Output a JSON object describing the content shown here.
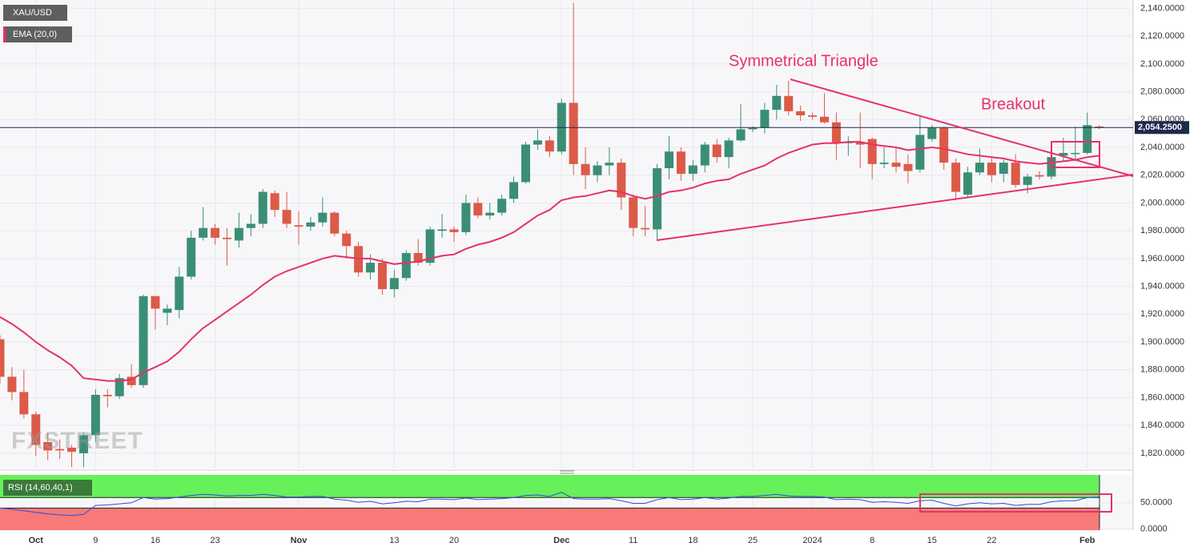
{
  "chart_data": {
    "type": "candlestick",
    "symbol": "XAU/USD",
    "indicator_label": "EMA (20,0)",
    "annotations": [
      "Symmetrical Triangle",
      "Breakout"
    ],
    "watermark": "FXSTREET",
    "colors": {
      "up": "#3b8e76",
      "down": "#dc5a48",
      "ema": "#e8306a",
      "rsi": "#2b4ed6"
    },
    "ylim": [
      1809,
      2146
    ],
    "yticks": [
      {
        "value": 1820,
        "label": "1,820.0000"
      },
      {
        "value": 1840,
        "label": "1,840.0000"
      },
      {
        "value": 1860,
        "label": "1,860.0000"
      },
      {
        "value": 1880,
        "label": "1,880.0000"
      },
      {
        "value": 1900,
        "label": "1,900.0000"
      },
      {
        "value": 1920,
        "label": "1,920.0000"
      },
      {
        "value": 1940,
        "label": "1,940.0000"
      },
      {
        "value": 1960,
        "label": "1,960.0000"
      },
      {
        "value": 1980,
        "label": "1,980.0000"
      },
      {
        "value": 2000,
        "label": "2,000.0000"
      },
      {
        "value": 2020,
        "label": "2,020.0000"
      },
      {
        "value": 2040,
        "label": "2,040.0000"
      },
      {
        "value": 2060,
        "label": "2,060.0000"
      },
      {
        "value": 2080,
        "label": "2,080.0000"
      },
      {
        "value": 2100,
        "label": "2,100.0000"
      },
      {
        "value": 2120,
        "label": "2,120.0000"
      },
      {
        "value": 2140,
        "label": "2,140.0000"
      }
    ],
    "xticks": [
      {
        "value": 3,
        "label": "Oct"
      },
      {
        "value": 8,
        "label": "9"
      },
      {
        "value": 13,
        "label": "16"
      },
      {
        "value": 18,
        "label": "23"
      },
      {
        "value": 25,
        "label": "Nov"
      },
      {
        "value": 33,
        "label": "13"
      },
      {
        "value": 38,
        "label": "20"
      },
      {
        "value": 47,
        "label": "Dec"
      },
      {
        "value": 53,
        "label": "11"
      },
      {
        "value": 58,
        "label": "18"
      },
      {
        "value": 63,
        "label": "25"
      },
      {
        "value": 68,
        "label": "2024"
      },
      {
        "value": 73,
        "label": "8"
      },
      {
        "value": 78,
        "label": "15"
      },
      {
        "value": 83,
        "label": "22"
      },
      {
        "value": 91,
        "label": "Feb"
      }
    ],
    "last_price": {
      "value": 2054.25,
      "label": "2,054.2500"
    },
    "open": [
      1902,
      1875,
      1864,
      1848,
      1828,
      1823,
      1824,
      1820,
      1833,
      1862,
      1861,
      1875,
      1869,
      1933,
      1921,
      1923,
      1947,
      1975,
      1982,
      1975,
      1973,
      1982,
      1985,
      2007,
      1995,
      1984,
      1983,
      1986,
      1993,
      1978,
      1969,
      1950,
      1957,
      1938,
      1946,
      1964,
      1957,
      1980,
      1981,
      1979,
      2000,
      1991,
      1993,
      2003,
      2015,
      2042,
      2045,
      2037,
      2072,
      2028,
      2020,
      2027,
      2029,
      2004,
      1982,
      1981,
      2025,
      2037,
      2021,
      2027,
      2042,
      2033,
      2045,
      2053,
      2054,
      2067,
      2077,
      2066,
      2063,
      2062,
      2058,
      2043,
      2044,
      2046,
      2028,
      2029,
      2028,
      2024,
      2046,
      2054,
      2029,
      2006,
      2022,
      2029,
      2021,
      2029,
      2013,
      2020,
      2019,
      2034,
      2036,
      2036,
      2055
    ],
    "high": [
      1905,
      1882,
      1880,
      1850,
      1835,
      1830,
      1826,
      1835,
      1866,
      1866,
      1877,
      1884,
      1934,
      1933,
      1927,
      1954,
      1980,
      1997,
      1985,
      1982,
      1993,
      1992,
      2010,
      2009,
      2008,
      1994,
      1990,
      2004,
      1994,
      1980,
      1972,
      1963,
      1960,
      1952,
      1966,
      1974,
      1983,
      1992,
      1983,
      2006,
      2004,
      2000,
      2006,
      2019,
      2044,
      2053,
      2048,
      2075,
      2144,
      2040,
      2030,
      2040,
      2032,
      2006,
      1998,
      2028,
      2048,
      2040,
      2031,
      2044,
      2046,
      2047,
      2071,
      2055,
      2072,
      2085,
      2088,
      2070,
      2065,
      2079,
      2065,
      2048,
      2065,
      2047,
      2040,
      2040,
      2035,
      2062,
      2056,
      2055,
      2032,
      2026,
      2039,
      2033,
      2031,
      2035,
      2021,
      2023,
      2036,
      2047,
      2055,
      2065,
      2056
    ],
    "low": [
      1870,
      1858,
      1845,
      1818,
      1815,
      1816,
      1810,
      1810,
      1828,
      1853,
      1859,
      1867,
      1867,
      1909,
      1912,
      1917,
      1945,
      1973,
      1970,
      1955,
      1968,
      1976,
      1982,
      1990,
      1982,
      1970,
      1980,
      1983,
      1976,
      1960,
      1947,
      1945,
      1934,
      1932,
      1944,
      1955,
      1955,
      1975,
      1972,
      1977,
      1989,
      1988,
      1991,
      2000,
      2014,
      2038,
      2033,
      2035,
      2020,
      2010,
      2015,
      2020,
      1995,
      1976,
      1976,
      1973,
      2017,
      2016,
      2016,
      2022,
      2029,
      2025,
      2044,
      2051,
      2050,
      2060,
      2063,
      2059,
      2060,
      2057,
      2031,
      2034,
      2025,
      2017,
      2025,
      2022,
      2014,
      2022,
      2044,
      2024,
      2002,
      2004,
      2020,
      2015,
      2015,
      2011,
      2007,
      2017,
      2017,
      2030,
      2030,
      2035,
      2053
    ],
    "close": [
      1875,
      1864,
      1848,
      1826,
      1822,
      1822,
      1821,
      1833,
      1862,
      1861,
      1874,
      1869,
      1933,
      1924,
      1924,
      1947,
      1975,
      1982,
      1975,
      1974,
      1982,
      1985,
      2008,
      1995,
      1985,
      1983,
      1986,
      1993,
      1978,
      1969,
      1950,
      1957,
      1938,
      1946,
      1964,
      1957,
      1981,
      1981,
      1979,
      2000,
      1991,
      1993,
      2003,
      2015,
      2042,
      2045,
      2037,
      2072,
      2028,
      2020,
      2027,
      2029,
      2004,
      1982,
      1981,
      2025,
      2037,
      2021,
      2027,
      2042,
      2033,
      2045,
      2053,
      2054,
      2067,
      2077,
      2066,
      2063,
      2062,
      2058,
      2043,
      2044,
      2042,
      2028,
      2029,
      2026,
      2023,
      2049,
      2054,
      2029,
      2008,
      2022,
      2029,
      2020,
      2029,
      2013,
      2019,
      2019,
      2033,
      2036,
      2036,
      2056,
      2054
    ],
    "ema": [
      1918,
      1913,
      1907,
      1900,
      1894,
      1889,
      1883,
      1874,
      1873,
      1872,
      1872,
      1873,
      1878,
      1882,
      1886,
      1893,
      1902,
      1910,
      1916,
      1922,
      1928,
      1934,
      1941,
      1947,
      1951,
      1954,
      1957,
      1960,
      1962,
      1961,
      1960,
      1960,
      1958,
      1956,
      1957,
      1958,
      1960,
      1962,
      1963,
      1967,
      1970,
      1972,
      1975,
      1979,
      1985,
      1991,
      1995,
      2002,
      2004,
      2005,
      2007,
      2009,
      2008,
      2005,
      2003,
      2005,
      2008,
      2009,
      2011,
      2014,
      2016,
      2017,
      2021,
      2024,
      2027,
      2032,
      2036,
      2039,
      2042,
      2043,
      2043,
      2044,
      2044,
      2042,
      2041,
      2040,
      2038,
      2039,
      2040,
      2039,
      2037,
      2035,
      2034,
      2033,
      2032,
      2030,
      2029,
      2028,
      2029,
      2030,
      2031,
      2033,
      2034
    ],
    "rsi": {
      "label": "RSI (14,60,40,1)",
      "ylim": [
        -2,
        103
      ],
      "upper": 60,
      "lower": 40,
      "yticks": [
        {
          "value": 0,
          "label": "0.0000"
        },
        {
          "value": 50,
          "label": "50.0000"
        }
      ],
      "values": [
        40,
        38,
        35,
        32,
        29,
        27,
        26,
        28,
        45,
        46,
        48,
        50,
        60,
        57,
        58,
        61,
        64,
        66,
        65,
        63,
        64,
        64,
        66,
        64,
        61,
        61,
        62,
        62,
        57,
        55,
        51,
        53,
        48,
        50,
        53,
        52,
        57,
        57,
        56,
        59,
        56,
        57,
        58,
        60,
        64,
        65,
        62,
        70,
        58,
        57,
        57,
        58,
        54,
        49,
        49,
        56,
        60,
        56,
        57,
        60,
        57,
        59,
        62,
        62,
        64,
        66,
        63,
        62,
        62,
        61,
        56,
        57,
        56,
        51,
        52,
        51,
        49,
        54,
        55,
        49,
        44,
        48,
        50,
        48,
        49,
        45,
        47,
        47,
        52,
        54,
        54,
        60,
        61
      ]
    }
  }
}
